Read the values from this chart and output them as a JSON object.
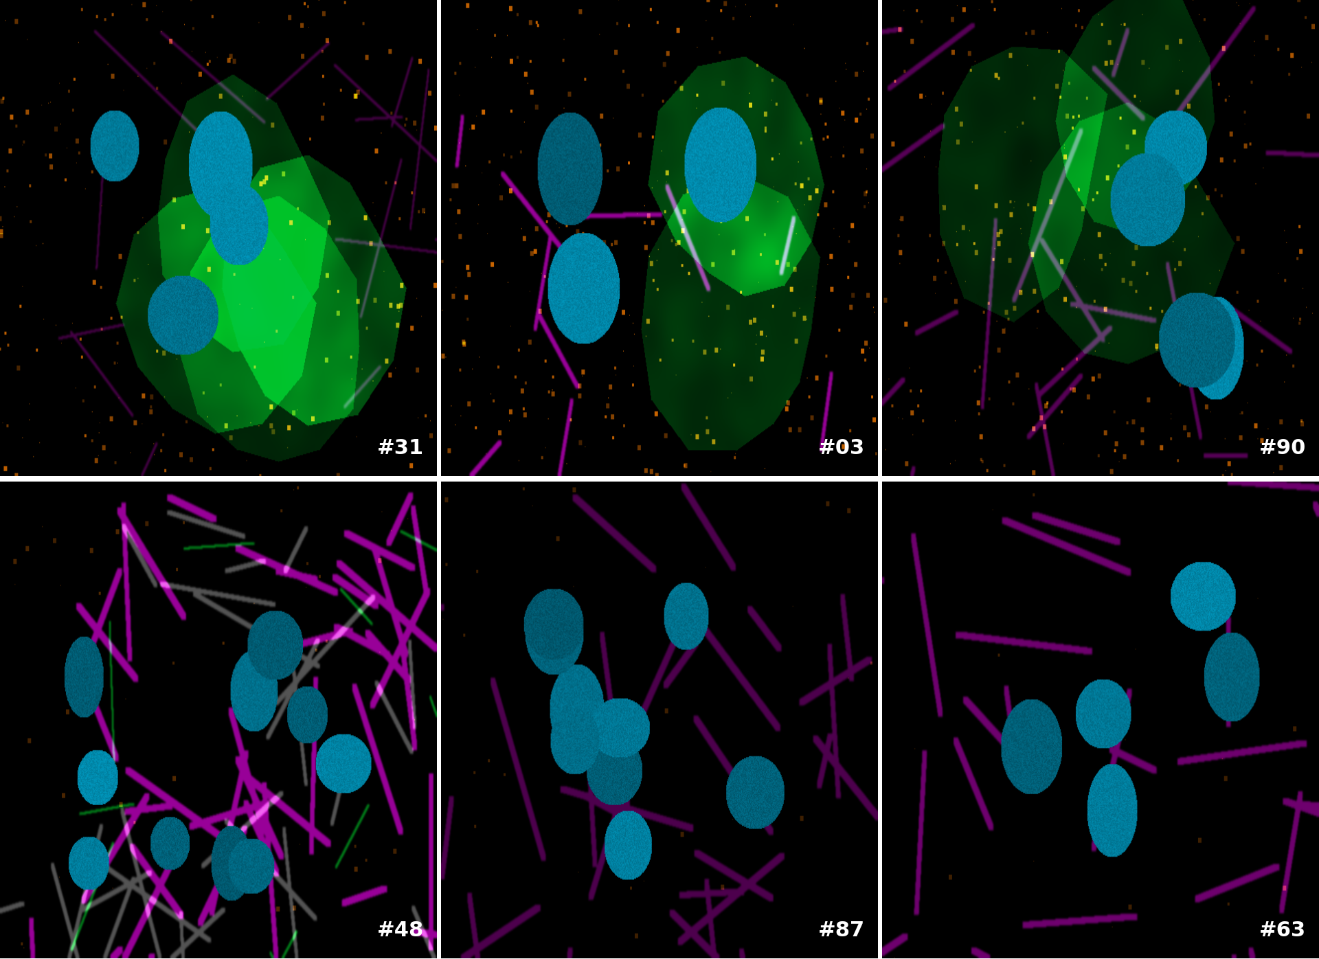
{
  "figure_bg": "#ffffff",
  "panels": [
    {
      "id": "#31",
      "row": 0,
      "col": 0,
      "style": "green_orange"
    },
    {
      "id": "#03",
      "row": 0,
      "col": 1,
      "style": "green_orange_bright"
    },
    {
      "id": "#90",
      "row": 0,
      "col": 2,
      "style": "green_orange_magenta"
    },
    {
      "id": "#48",
      "row": 1,
      "col": 0,
      "style": "magenta_gray"
    },
    {
      "id": "#87",
      "row": 1,
      "col": 1,
      "style": "magenta_dark"
    },
    {
      "id": "#63",
      "row": 1,
      "col": 2,
      "style": "magenta_sparse"
    }
  ],
  "label_color": "#ffffff",
  "label_fontsize": 22,
  "label_fontweight": "bold",
  "nrows": 2,
  "ncols": 3,
  "border_color": "#ffffff",
  "border_width": 8
}
